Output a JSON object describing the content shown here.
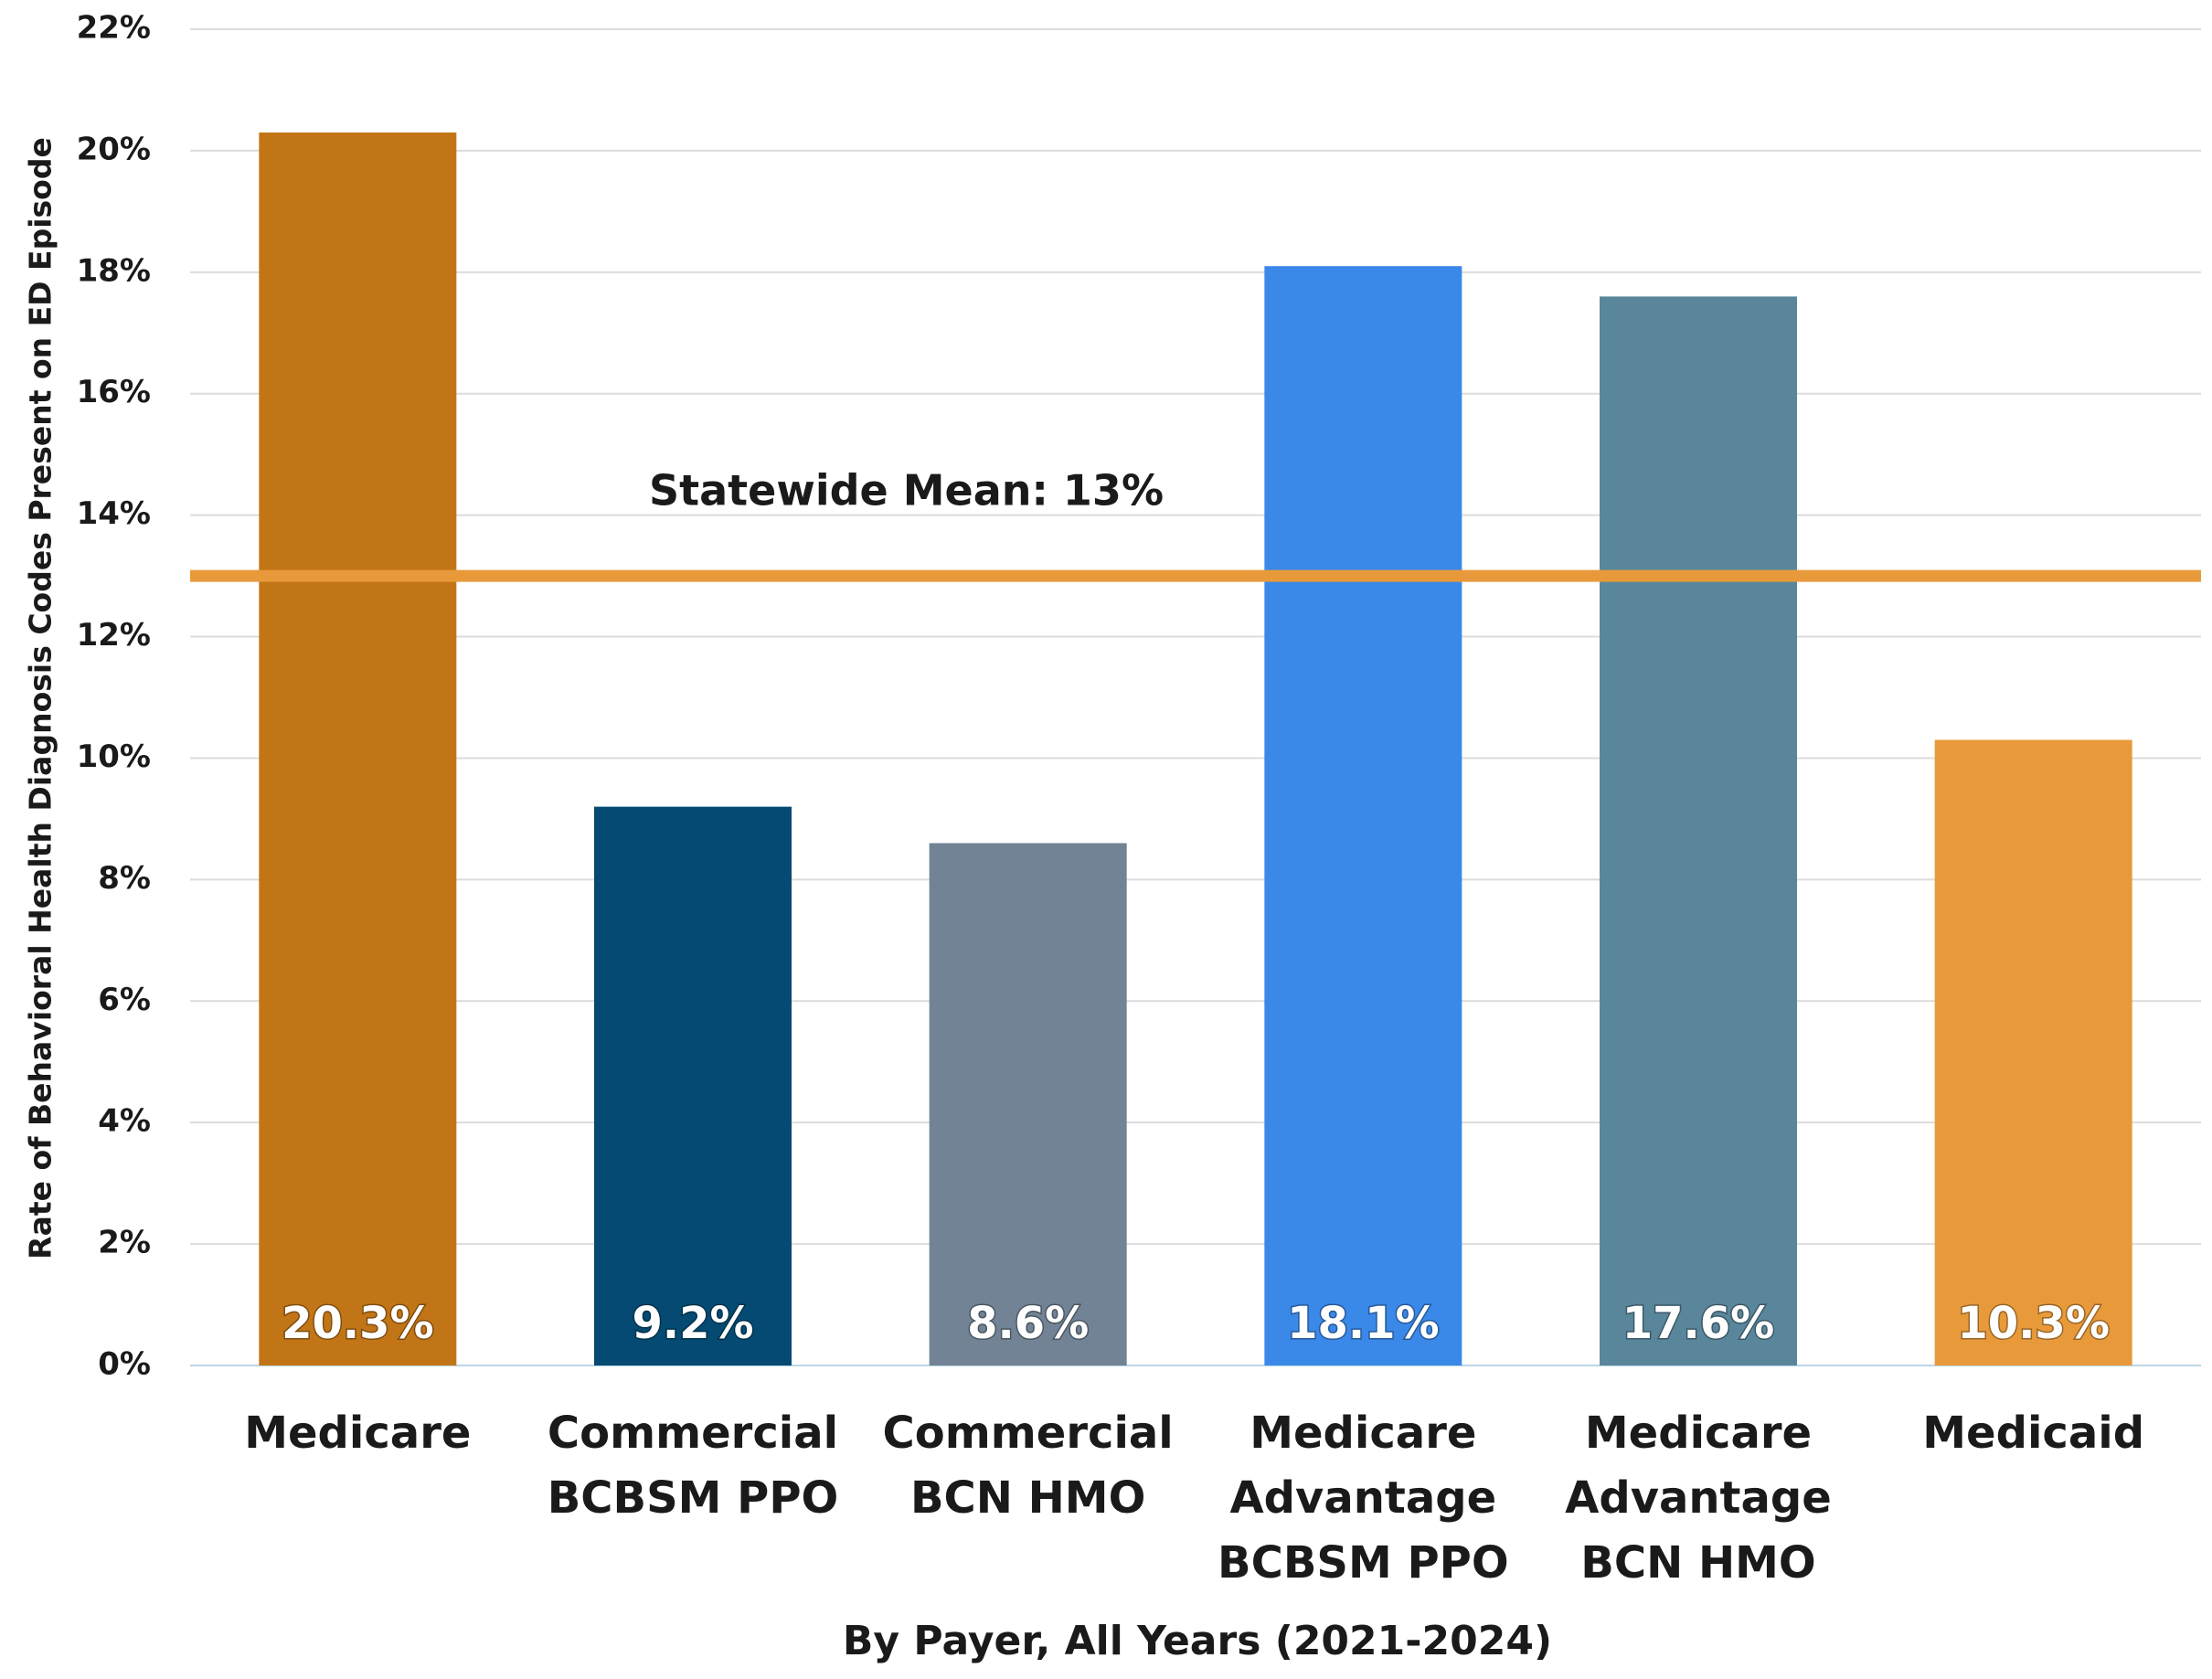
{
  "chart_data": {
    "type": "bar",
    "ylabel": "Rate of Behavioral Health Diagnosis Codes Present on ED Episode",
    "xlabel": "By Payer, All Years (2021-2024)",
    "categories": [
      [
        "Medicare"
      ],
      [
        "Commercial",
        "BCBSM PPO"
      ],
      [
        "Commercial",
        "BCN HMO"
      ],
      [
        "Medicare",
        "Advantage",
        "BCBSM PPO"
      ],
      [
        "Medicare",
        "Advantage",
        "BCN HMO"
      ],
      [
        "Medicaid"
      ]
    ],
    "values": [
      20.3,
      9.2,
      8.6,
      18.1,
      17.6,
      10.3
    ],
    "value_labels": [
      "20.3%",
      "9.2%",
      "8.6%",
      "18.1%",
      "17.6%",
      "10.3%"
    ],
    "colors": [
      "#c27516",
      "#044a72",
      "#718394",
      "#3a88e8",
      "#5a869c",
      "#e89a3a"
    ],
    "ylim": [
      0,
      22
    ],
    "yticks": [
      {
        "value": 0,
        "label": "0%"
      },
      {
        "value": 2,
        "label": "2%"
      },
      {
        "value": 4,
        "label": "4%"
      },
      {
        "value": 6,
        "label": "6%"
      },
      {
        "value": 8,
        "label": "8%"
      },
      {
        "value": 10,
        "label": "10%"
      },
      {
        "value": 12,
        "label": "12%"
      },
      {
        "value": 14,
        "label": "14%"
      },
      {
        "value": 16,
        "label": "16%"
      },
      {
        "value": 18,
        "label": "18%"
      },
      {
        "value": 20,
        "label": "20%"
      },
      {
        "value": 22,
        "label": "22%"
      }
    ],
    "grid": true,
    "reference_line": {
      "value": 13,
      "label": "Statewide Mean: 13%",
      "color": "#e89a3a"
    }
  }
}
